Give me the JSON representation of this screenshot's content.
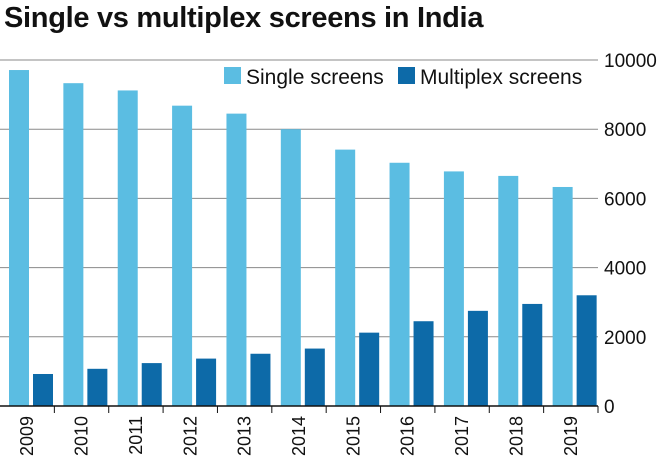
{
  "chart_data": {
    "type": "bar",
    "title": "Single vs multiplex screens in India",
    "categories": [
      "2009",
      "2010",
      "2011",
      "2012",
      "2013",
      "2014",
      "2015",
      "2016",
      "2017",
      "2018",
      "2019"
    ],
    "series": [
      {
        "name": "Single screens",
        "color": "#5bbde2",
        "values": [
          9710,
          9330,
          9120,
          8680,
          8450,
          8000,
          7410,
          7030,
          6780,
          6650,
          6330
        ]
      },
      {
        "name": "Multiplex screens",
        "color": "#0d6aa8",
        "values": [
          925,
          1075,
          1240,
          1370,
          1510,
          1660,
          2120,
          2450,
          2750,
          2950,
          3200
        ]
      }
    ],
    "ylim": [
      0,
      10000
    ],
    "yticks": [
      "0",
      "2000",
      "4000",
      "6000",
      "8000",
      "10000"
    ],
    "y_axis_position": "right",
    "grid": "horizontal",
    "legend": "top-right"
  }
}
